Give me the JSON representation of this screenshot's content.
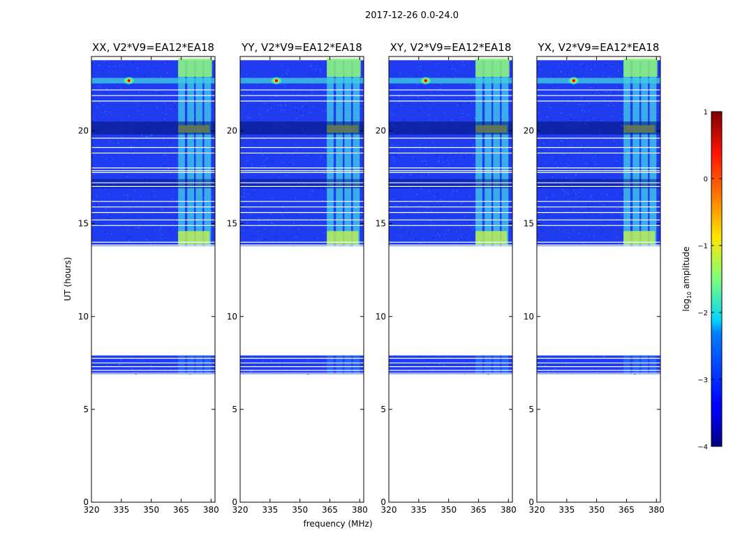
{
  "figure_title": "2017-12-26 0.0-24.0",
  "chart_data": {
    "type": "heatmap",
    "xlabel": "frequency (MHz)",
    "ylabel": "UT (hours)",
    "xlim": [
      320,
      382
    ],
    "ylim": [
      0,
      24
    ],
    "xticks": [
      320,
      335,
      350,
      365,
      380
    ],
    "yticks": [
      0,
      5,
      10,
      15,
      20
    ],
    "panels": [
      {
        "title": "XX, V2*V9=EA12*EA18",
        "source_freq": 338.8,
        "rfi_left_edge": 363.5
      },
      {
        "title": "YY, V2*V9=EA12*EA18",
        "source_freq": 338.2,
        "rfi_left_edge": 363.5
      },
      {
        "title": "XY, V2*V9=EA12*EA18",
        "source_freq": 338.5,
        "rfi_left_edge": 363.5
      },
      {
        "title": "YX, V2*V9=EA12*EA18",
        "source_freq": 338.5,
        "rfi_left_edge": 363.5
      }
    ],
    "data_coverage_hours": [
      [
        6.9,
        7.9
      ],
      [
        13.8,
        23.8
      ]
    ],
    "rfi_band_mhz": [
      363.5,
      380.5
    ],
    "colorbar": {
      "label": "log10 amplitude",
      "label_base": "log",
      "label_sub": "10",
      "label_rest": " amplitude",
      "range": [
        -4,
        1
      ],
      "ticks": [
        1,
        0,
        -1,
        -2,
        -3,
        -4
      ],
      "colormap": "jet"
    }
  }
}
